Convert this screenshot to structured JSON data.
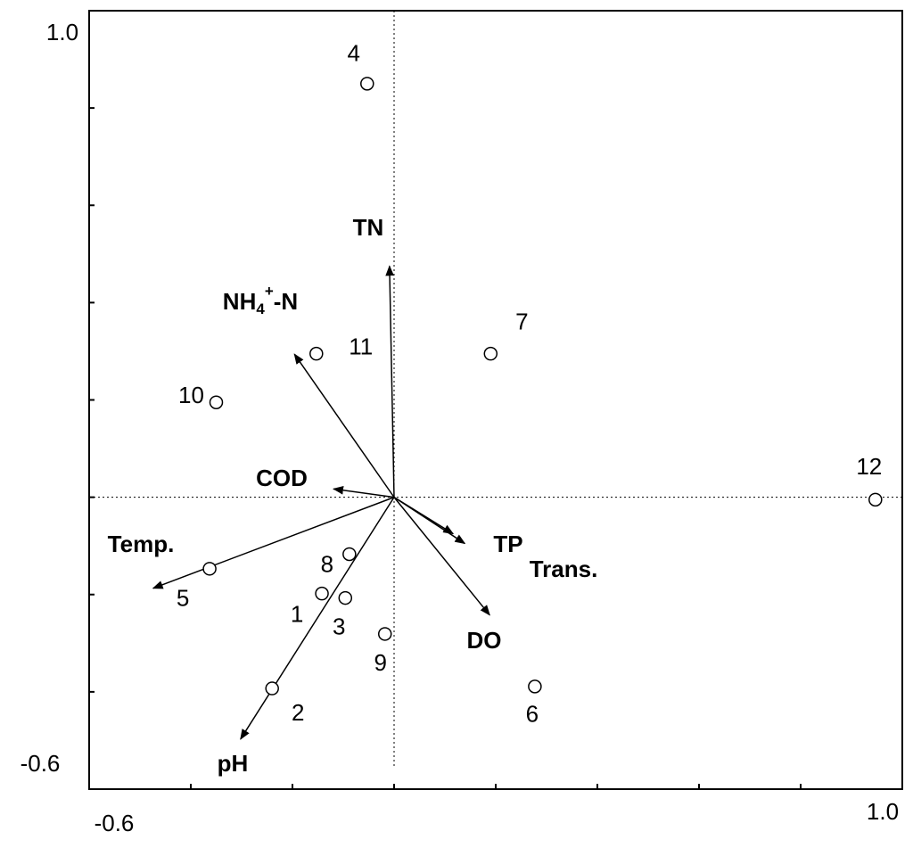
{
  "chart_data": {
    "type": "biplot",
    "xlim": [
      -0.6,
      1.0
    ],
    "ylim": [
      -0.6,
      1.0
    ],
    "xticks": [
      -0.6,
      {
        "value": 1,
        "label": "1.0"
      }
    ],
    "yticks": [
      -0.6,
      {
        "value": 1,
        "label": "1.0"
      }
    ],
    "x_minor_ticks": [
      -0.4,
      -0.2,
      0,
      0.2,
      0.4,
      0.6,
      0.8
    ],
    "y_minor_ticks": [
      -0.4,
      -0.2,
      0,
      0.2,
      0.4,
      0.6,
      0.8
    ],
    "sites": {
      "labels": [
        "4",
        "11",
        "7",
        "10",
        "12",
        "5",
        "8",
        "1",
        "3",
        "9",
        "2",
        "6"
      ],
      "x": [
        -0.053,
        -0.153,
        0.19,
        -0.35,
        0.947,
        -0.363,
        -0.088,
        -0.142,
        -0.096,
        -0.018,
        -0.24,
        0.277
      ],
      "y": [
        0.85,
        0.295,
        0.295,
        0.195,
        -0.005,
        -0.147,
        -0.117,
        -0.198,
        -0.207,
        -0.281,
        -0.393,
        -0.389
      ]
    },
    "variables": {
      "names": [
        "TN",
        [
          "NH",
          "4",
          "+",
          "-N"
        ],
        "COD",
        "Temp.",
        "pH",
        "TP",
        "Trans.",
        "DO"
      ],
      "x": [
        -0.009,
        -0.196,
        -0.119,
        -0.474,
        -0.302,
        0.139,
        0.116,
        0.188
      ],
      "y": [
        0.475,
        0.294,
        0.017,
        -0.187,
        -0.497,
        -0.095,
        -0.075,
        -0.242
      ]
    }
  }
}
